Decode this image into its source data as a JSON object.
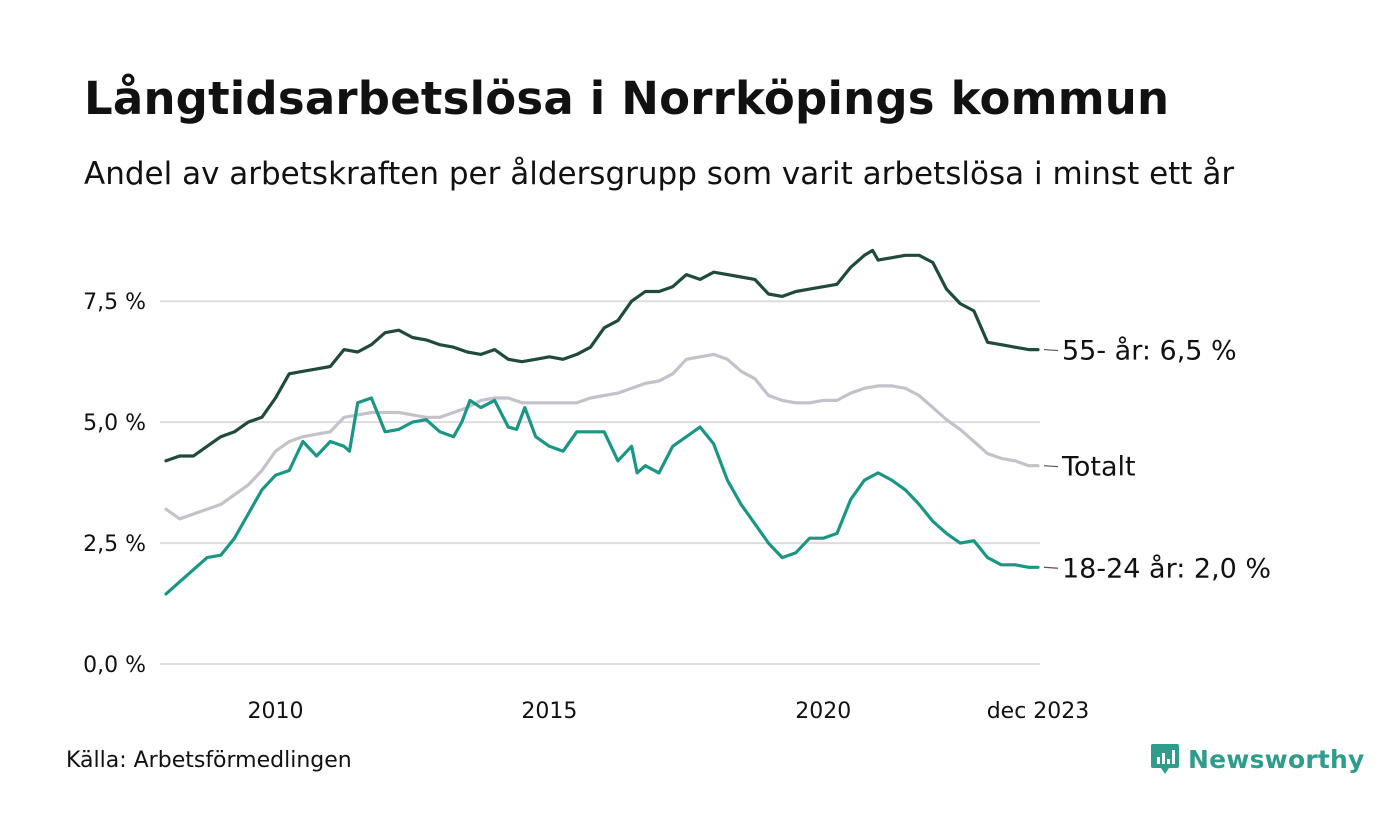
{
  "header": {
    "title": "Långtidsarbetslösa i Norrköpings kommun",
    "subtitle": "Andel av arbetskraften per åldersgrupp som varit arbetslösa i minst ett år"
  },
  "footer": {
    "source": "Källa: Arbetsförmedlingen",
    "brand": "Newsworthy"
  },
  "colors": {
    "older": "#1f4a3c",
    "total": "#c4c1cb",
    "young": "#1a9683",
    "grid": "#dddddd",
    "brand": "#2f9c8c"
  },
  "chart_data": {
    "type": "line",
    "title": "Långtidsarbetslösa i Norrköpings kommun",
    "xlabel": "",
    "ylabel": "",
    "ylim": [
      0,
      8.6
    ],
    "xlim": [
      2008.0,
      2023.92
    ],
    "grid": true,
    "y_ticks": [
      {
        "value": 0,
        "label": "0,0 %"
      },
      {
        "value": 2.5,
        "label": "2,5 %"
      },
      {
        "value": 5,
        "label": "5,0 %"
      },
      {
        "value": 7.5,
        "label": "7,5 %"
      }
    ],
    "x_ticks": [
      {
        "value": 2010,
        "label": "2010"
      },
      {
        "value": 2015,
        "label": "2015"
      },
      {
        "value": 2020,
        "label": "2020"
      },
      {
        "value": 2023.92,
        "label": "dec 2023"
      }
    ],
    "series": [
      {
        "name": "55- år",
        "label": "55- år: 6,5 %",
        "color_key": "older",
        "points": [
          [
            2008.0,
            4.2
          ],
          [
            2008.25,
            4.3
          ],
          [
            2008.5,
            4.3
          ],
          [
            2008.75,
            4.5
          ],
          [
            2009.0,
            4.7
          ],
          [
            2009.25,
            4.8
          ],
          [
            2009.5,
            5.0
          ],
          [
            2009.75,
            5.1
          ],
          [
            2010.0,
            5.5
          ],
          [
            2010.25,
            6.0
          ],
          [
            2010.5,
            6.05
          ],
          [
            2010.75,
            6.1
          ],
          [
            2011.0,
            6.15
          ],
          [
            2011.25,
            6.5
          ],
          [
            2011.5,
            6.45
          ],
          [
            2011.75,
            6.6
          ],
          [
            2012.0,
            6.85
          ],
          [
            2012.25,
            6.9
          ],
          [
            2012.5,
            6.75
          ],
          [
            2012.75,
            6.7
          ],
          [
            2013.0,
            6.6
          ],
          [
            2013.25,
            6.55
          ],
          [
            2013.5,
            6.45
          ],
          [
            2013.75,
            6.4
          ],
          [
            2014.0,
            6.5
          ],
          [
            2014.25,
            6.3
          ],
          [
            2014.5,
            6.25
          ],
          [
            2014.75,
            6.3
          ],
          [
            2015.0,
            6.35
          ],
          [
            2015.25,
            6.3
          ],
          [
            2015.5,
            6.4
          ],
          [
            2015.75,
            6.55
          ],
          [
            2016.0,
            6.95
          ],
          [
            2016.25,
            7.1
          ],
          [
            2016.5,
            7.5
          ],
          [
            2016.75,
            7.7
          ],
          [
            2017.0,
            7.7
          ],
          [
            2017.25,
            7.8
          ],
          [
            2017.5,
            8.05
          ],
          [
            2017.75,
            7.95
          ],
          [
            2018.0,
            8.1
          ],
          [
            2018.25,
            8.05
          ],
          [
            2018.5,
            8.0
          ],
          [
            2018.75,
            7.95
          ],
          [
            2019.0,
            7.65
          ],
          [
            2019.25,
            7.6
          ],
          [
            2019.5,
            7.7
          ],
          [
            2019.75,
            7.75
          ],
          [
            2020.0,
            7.8
          ],
          [
            2020.25,
            7.85
          ],
          [
            2020.5,
            8.2
          ],
          [
            2020.75,
            8.45
          ],
          [
            2020.9,
            8.55
          ],
          [
            2021.0,
            8.35
          ],
          [
            2021.25,
            8.4
          ],
          [
            2021.5,
            8.45
          ],
          [
            2021.75,
            8.45
          ],
          [
            2022.0,
            8.3
          ],
          [
            2022.25,
            7.75
          ],
          [
            2022.5,
            7.45
          ],
          [
            2022.75,
            7.3
          ],
          [
            2023.0,
            6.65
          ],
          [
            2023.25,
            6.6
          ],
          [
            2023.5,
            6.55
          ],
          [
            2023.75,
            6.5
          ],
          [
            2023.92,
            6.5
          ]
        ]
      },
      {
        "name": "Totalt",
        "label": "Totalt",
        "color_key": "total",
        "points": [
          [
            2008.0,
            3.2
          ],
          [
            2008.25,
            3.0
          ],
          [
            2008.5,
            3.1
          ],
          [
            2008.75,
            3.2
          ],
          [
            2009.0,
            3.3
          ],
          [
            2009.25,
            3.5
          ],
          [
            2009.5,
            3.7
          ],
          [
            2009.75,
            4.0
          ],
          [
            2010.0,
            4.4
          ],
          [
            2010.25,
            4.6
          ],
          [
            2010.5,
            4.7
          ],
          [
            2010.75,
            4.75
          ],
          [
            2011.0,
            4.8
          ],
          [
            2011.25,
            5.1
          ],
          [
            2011.5,
            5.15
          ],
          [
            2011.75,
            5.2
          ],
          [
            2012.0,
            5.2
          ],
          [
            2012.25,
            5.2
          ],
          [
            2012.5,
            5.15
          ],
          [
            2012.75,
            5.1
          ],
          [
            2013.0,
            5.1
          ],
          [
            2013.25,
            5.2
          ],
          [
            2013.5,
            5.3
          ],
          [
            2013.75,
            5.45
          ],
          [
            2014.0,
            5.5
          ],
          [
            2014.25,
            5.5
          ],
          [
            2014.5,
            5.4
          ],
          [
            2014.75,
            5.4
          ],
          [
            2015.0,
            5.4
          ],
          [
            2015.25,
            5.4
          ],
          [
            2015.5,
            5.4
          ],
          [
            2015.75,
            5.5
          ],
          [
            2016.0,
            5.55
          ],
          [
            2016.25,
            5.6
          ],
          [
            2016.5,
            5.7
          ],
          [
            2016.75,
            5.8
          ],
          [
            2017.0,
            5.85
          ],
          [
            2017.25,
            6.0
          ],
          [
            2017.5,
            6.3
          ],
          [
            2017.75,
            6.35
          ],
          [
            2018.0,
            6.4
          ],
          [
            2018.25,
            6.3
          ],
          [
            2018.5,
            6.05
          ],
          [
            2018.75,
            5.9
          ],
          [
            2019.0,
            5.55
          ],
          [
            2019.25,
            5.45
          ],
          [
            2019.5,
            5.4
          ],
          [
            2019.75,
            5.4
          ],
          [
            2020.0,
            5.45
          ],
          [
            2020.25,
            5.45
          ],
          [
            2020.5,
            5.6
          ],
          [
            2020.75,
            5.7
          ],
          [
            2021.0,
            5.75
          ],
          [
            2021.25,
            5.75
          ],
          [
            2021.5,
            5.7
          ],
          [
            2021.75,
            5.55
          ],
          [
            2022.0,
            5.3
          ],
          [
            2022.25,
            5.05
          ],
          [
            2022.5,
            4.85
          ],
          [
            2022.75,
            4.6
          ],
          [
            2023.0,
            4.35
          ],
          [
            2023.25,
            4.25
          ],
          [
            2023.5,
            4.2
          ],
          [
            2023.75,
            4.1
          ],
          [
            2023.92,
            4.1
          ]
        ]
      },
      {
        "name": "18-24 år",
        "label": "18-24 år: 2,0 %",
        "color_key": "young",
        "points": [
          [
            2008.0,
            1.45
          ],
          [
            2008.25,
            1.7
          ],
          [
            2008.5,
            1.95
          ],
          [
            2008.75,
            2.2
          ],
          [
            2009.0,
            2.25
          ],
          [
            2009.25,
            2.6
          ],
          [
            2009.5,
            3.1
          ],
          [
            2009.75,
            3.6
          ],
          [
            2010.0,
            3.9
          ],
          [
            2010.25,
            4.0
          ],
          [
            2010.5,
            4.6
          ],
          [
            2010.75,
            4.3
          ],
          [
            2011.0,
            4.6
          ],
          [
            2011.25,
            4.5
          ],
          [
            2011.35,
            4.4
          ],
          [
            2011.5,
            5.4
          ],
          [
            2011.75,
            5.5
          ],
          [
            2012.0,
            4.8
          ],
          [
            2012.25,
            4.85
          ],
          [
            2012.5,
            5.0
          ],
          [
            2012.75,
            5.05
          ],
          [
            2013.0,
            4.8
          ],
          [
            2013.25,
            4.7
          ],
          [
            2013.4,
            5.0
          ],
          [
            2013.55,
            5.45
          ],
          [
            2013.75,
            5.3
          ],
          [
            2014.0,
            5.45
          ],
          [
            2014.25,
            4.9
          ],
          [
            2014.4,
            4.85
          ],
          [
            2014.55,
            5.3
          ],
          [
            2014.75,
            4.7
          ],
          [
            2015.0,
            4.5
          ],
          [
            2015.25,
            4.4
          ],
          [
            2015.5,
            4.8
          ],
          [
            2015.75,
            4.8
          ],
          [
            2016.0,
            4.8
          ],
          [
            2016.25,
            4.2
          ],
          [
            2016.5,
            4.5
          ],
          [
            2016.6,
            3.95
          ],
          [
            2016.75,
            4.1
          ],
          [
            2017.0,
            3.95
          ],
          [
            2017.25,
            4.5
          ],
          [
            2017.5,
            4.7
          ],
          [
            2017.75,
            4.9
          ],
          [
            2018.0,
            4.55
          ],
          [
            2018.25,
            3.8
          ],
          [
            2018.5,
            3.3
          ],
          [
            2018.75,
            2.9
          ],
          [
            2019.0,
            2.5
          ],
          [
            2019.25,
            2.2
          ],
          [
            2019.5,
            2.3
          ],
          [
            2019.75,
            2.6
          ],
          [
            2020.0,
            2.6
          ],
          [
            2020.25,
            2.7
          ],
          [
            2020.5,
            3.4
          ],
          [
            2020.75,
            3.8
          ],
          [
            2021.0,
            3.95
          ],
          [
            2021.25,
            3.8
          ],
          [
            2021.5,
            3.6
          ],
          [
            2021.75,
            3.3
          ],
          [
            2022.0,
            2.95
          ],
          [
            2022.25,
            2.7
          ],
          [
            2022.5,
            2.5
          ],
          [
            2022.75,
            2.55
          ],
          [
            2023.0,
            2.2
          ],
          [
            2023.25,
            2.05
          ],
          [
            2023.5,
            2.05
          ],
          [
            2023.75,
            2.0
          ],
          [
            2023.92,
            2.0
          ]
        ]
      }
    ]
  }
}
